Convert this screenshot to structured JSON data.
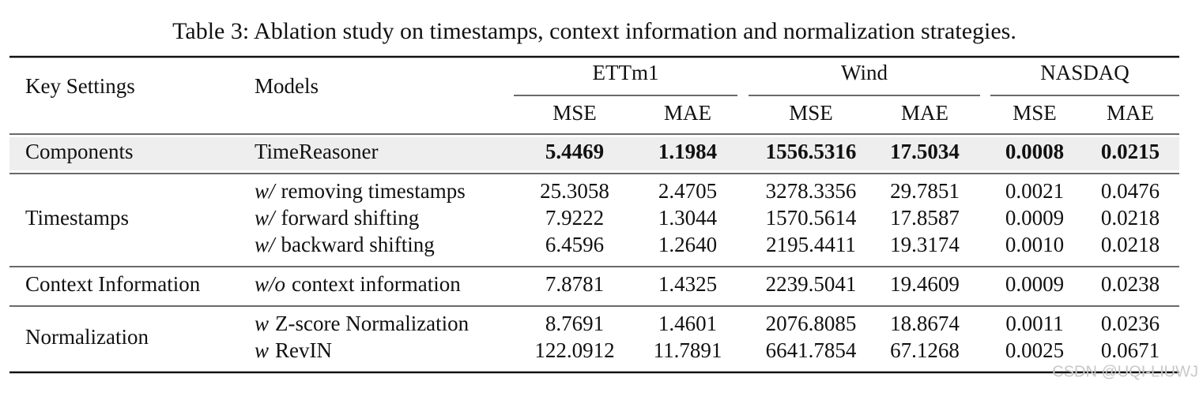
{
  "caption": "Table 3: Ablation study on timestamps, context information and normalization strategies.",
  "table": {
    "header": {
      "key": "Key Settings",
      "model": "Models",
      "groups": [
        {
          "name": "ETTm1",
          "metrics": [
            "MSE",
            "MAE"
          ]
        },
        {
          "name": "Wind",
          "metrics": [
            "MSE",
            "MAE"
          ]
        },
        {
          "name": "NASDAQ",
          "metrics": [
            "MSE",
            "MAE"
          ]
        }
      ]
    },
    "sections": [
      {
        "key": "Components",
        "highlight": true,
        "bold": true,
        "rows": [
          {
            "model": "TimeReasoner",
            "values": [
              "5.4469",
              "1.1984",
              "1556.5316",
              "17.5034",
              "0.0008",
              "0.0215"
            ]
          }
        ]
      },
      {
        "key": "Timestamps",
        "rows": [
          {
            "prefix": "w/",
            "model": "removing timestamps",
            "values": [
              "25.3058",
              "2.4705",
              "3278.3356",
              "29.7851",
              "0.0021",
              "0.0476"
            ]
          },
          {
            "prefix": "w/",
            "model": "forward shifting",
            "values": [
              "7.9222",
              "1.3044",
              "1570.5614",
              "17.8587",
              "0.0009",
              "0.0218"
            ]
          },
          {
            "prefix": "w/",
            "model": "backward shifting",
            "values": [
              "6.4596",
              "1.2640",
              "2195.4411",
              "19.3174",
              "0.0010",
              "0.0218"
            ]
          }
        ]
      },
      {
        "key": "Context Information",
        "rows": [
          {
            "prefix": "w/o",
            "model": "context information",
            "values": [
              "7.8781",
              "1.4325",
              "2239.5041",
              "19.4609",
              "0.0009",
              "0.0238"
            ]
          }
        ]
      },
      {
        "key": "Normalization",
        "rows": [
          {
            "prefix": "w",
            "model": "Z-score Normalization",
            "values": [
              "8.7691",
              "1.4601",
              "2076.8085",
              "18.8674",
              "0.0011",
              "0.0236"
            ]
          },
          {
            "prefix": "w",
            "model": "RevIN",
            "values": [
              "122.0912",
              "11.7891",
              "6641.7854",
              "67.1268",
              "0.0025",
              "0.0671"
            ]
          }
        ]
      }
    ]
  },
  "watermark": "CSDN @UQI-LIUWJ"
}
